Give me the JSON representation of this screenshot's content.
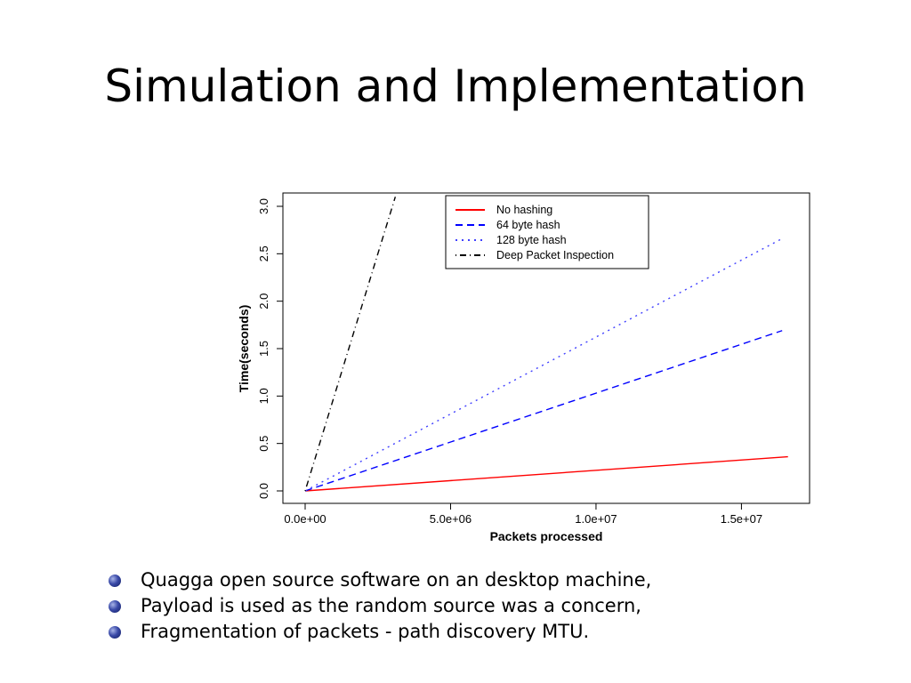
{
  "slide": {
    "title": "Simulation and Implementation",
    "bullets": [
      {
        "text": "Quagga open source software on an desktop machine,"
      },
      {
        "text": "Payload is used as the random source was a concern,"
      },
      {
        "text": "Fragmentation of packets - path discovery MTU."
      }
    ]
  },
  "chart_data": {
    "type": "line",
    "xlabel": "Packets processed",
    "ylabel": "Time(seconds)",
    "xlim": [
      0,
      16700000
    ],
    "ylim": [
      0,
      3.1
    ],
    "x_ticks": [
      {
        "value": 0,
        "label": "0.0e+00"
      },
      {
        "value": 5000000,
        "label": "5.0e+06"
      },
      {
        "value": 10000000,
        "label": "1.0e+07"
      },
      {
        "value": 15000000,
        "label": "1.5e+07"
      }
    ],
    "y_ticks": [
      {
        "value": 0,
        "label": "0.0"
      },
      {
        "value": 0.5,
        "label": "0.5"
      },
      {
        "value": 1.0,
        "label": "1.0"
      },
      {
        "value": 1.5,
        "label": "1.5"
      },
      {
        "value": 2.0,
        "label": "2.0"
      },
      {
        "value": 2.5,
        "label": "2.5"
      },
      {
        "value": 3.0,
        "label": "3.0"
      }
    ],
    "legend_position": "top-right",
    "series": [
      {
        "name": "No hashing",
        "color": "#ff0000",
        "dash": "solid",
        "x": [
          0,
          16600000
        ],
        "y": [
          0,
          0.36
        ]
      },
      {
        "name": "64 byte hash",
        "color": "#0000ff",
        "dash": "dashed",
        "x": [
          0,
          16400000
        ],
        "y": [
          0,
          1.69
        ]
      },
      {
        "name": "128 byte hash",
        "color": "#4040ff",
        "dash": "dotted",
        "x": [
          0,
          16400000
        ],
        "y": [
          0,
          2.66
        ]
      },
      {
        "name": "Deep Packet Inspection",
        "color": "#000000",
        "dash": "dotdash",
        "x": [
          0,
          3100000
        ],
        "y": [
          0,
          3.1
        ]
      }
    ]
  }
}
